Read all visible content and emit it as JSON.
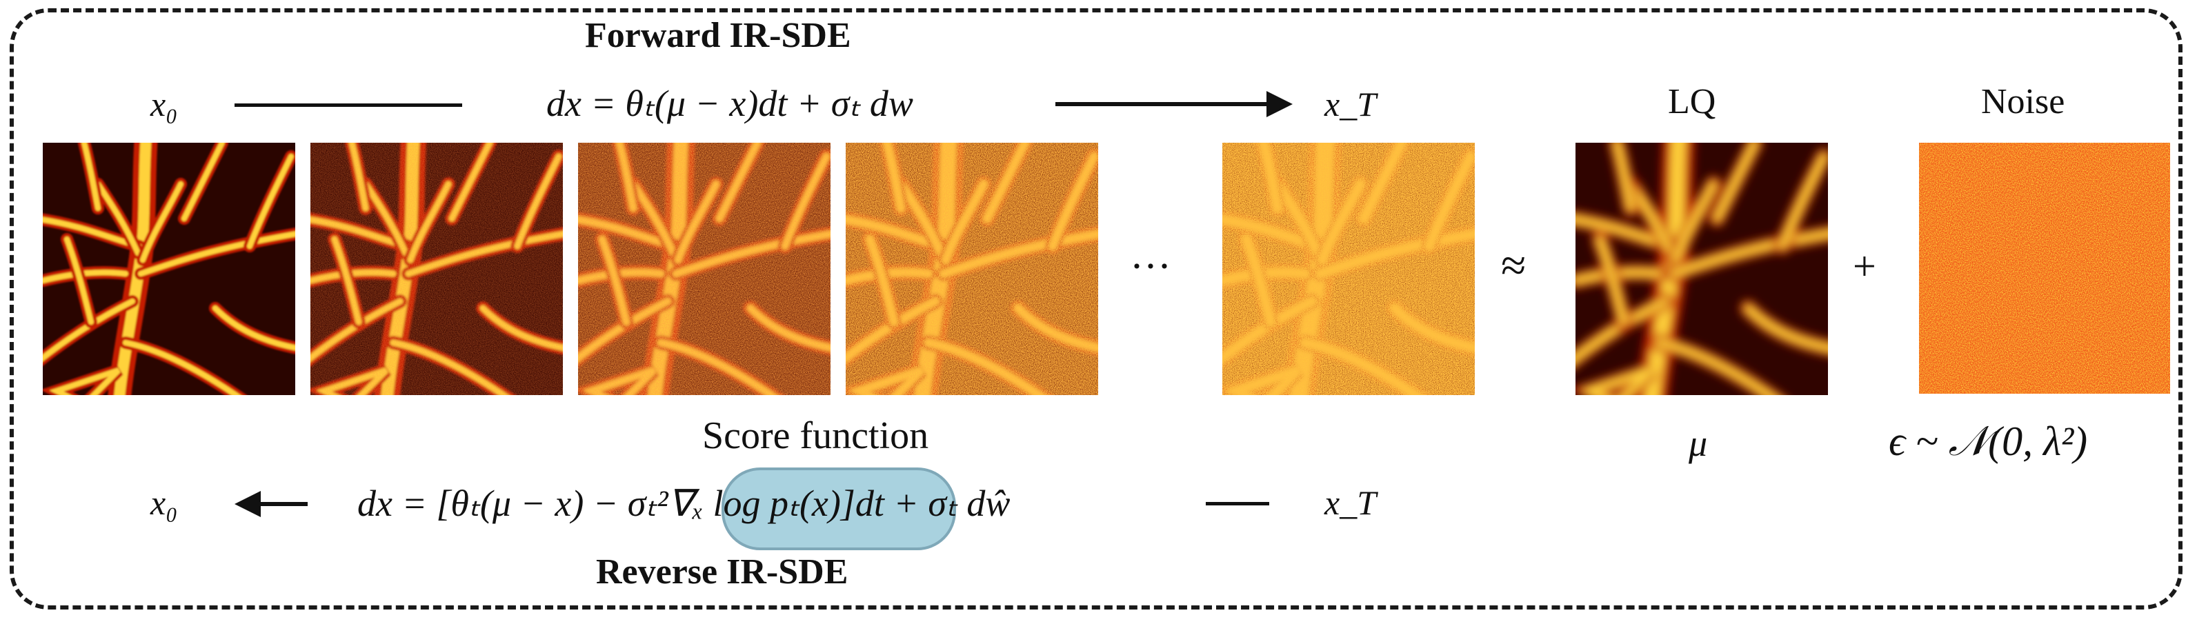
{
  "forward": {
    "title": "Forward IR-SDE",
    "start_label": "x₀",
    "end_label": "x_T",
    "equation": "dx = θₜ(μ − x)dt + σₜ dw"
  },
  "reverse": {
    "title": "Reverse IR-SDE",
    "start_label": "x_T",
    "end_label": "x₀",
    "score_label": "Score function",
    "eq_prefix": "dx = [θₜ(μ − x) − σₜ²",
    "eq_score": "∇ₓ log pₜ(x)",
    "eq_suffix": "]dt + σₜ dŵ"
  },
  "sequence": {
    "ellipsis": "···",
    "approx_symbol": "≈",
    "plus_symbol": "+"
  },
  "lq": {
    "label": "LQ",
    "symbol": "μ"
  },
  "noise": {
    "label": "Noise",
    "formula": "ϵ ~ 𝒩(0, λ²)"
  },
  "colors": {
    "frame": "#1a1a1a",
    "score_fill": "#a9d2df",
    "score_border": "#7fa8b8",
    "vessel_dark": "#2a0500",
    "vessel_mid": "#c41a00",
    "vessel_bright": "#ffd23a",
    "noise_base": "#ee4a12"
  }
}
